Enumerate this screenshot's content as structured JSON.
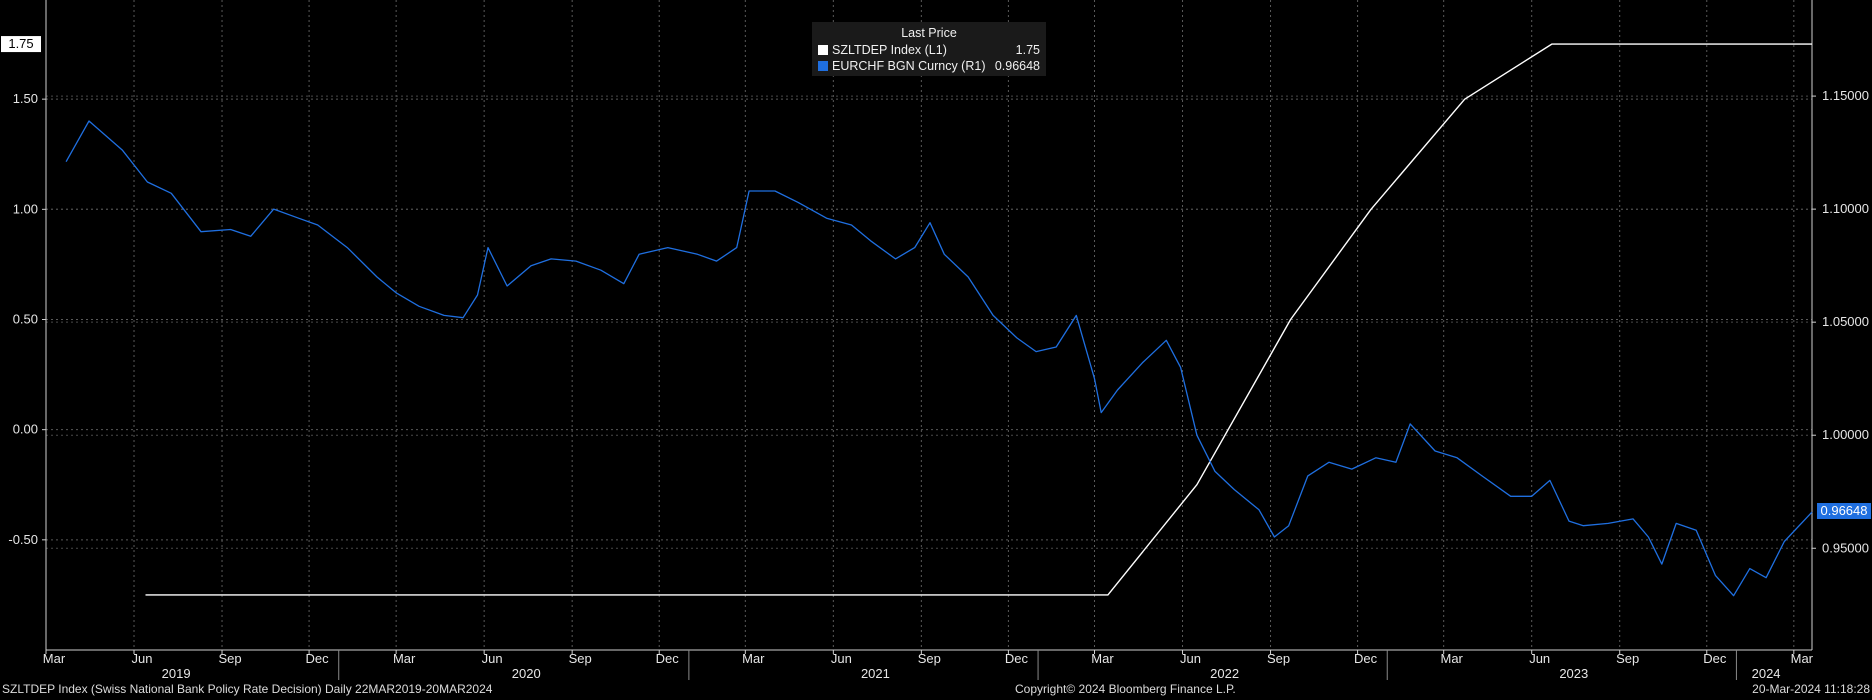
{
  "chart_data": {
    "type": "line",
    "title": "",
    "legend": {
      "title": "Last Price",
      "placement": "top-center",
      "entries": [
        {
          "label": "SZLTDEP Index  (L1)",
          "value": "1.75",
          "color": "#ffffff"
        },
        {
          "label": "EURCHF BGN Curncy  (R1)",
          "value": "0.96648",
          "color": "#1f6fe0"
        }
      ]
    },
    "left_axis": {
      "ticks": [
        "1.50",
        "1.00",
        "0.50",
        "0.00",
        "-0.50"
      ],
      "tick_values": [
        1.5,
        1.0,
        0.5,
        0.0,
        -0.5
      ],
      "ylim": [
        -1.0,
        1.95
      ],
      "last_value_label": "1.75"
    },
    "right_axis": {
      "ticks": [
        "1.15000",
        "1.10000",
        "1.05000",
        "1.00000",
        "0.95000"
      ],
      "tick_values": [
        1.15,
        1.1,
        1.05,
        1.0,
        0.95
      ],
      "ylim": [
        0.905,
        1.1925
      ],
      "last_value_label": "0.96648"
    },
    "x_axis": {
      "month_labels": [
        "Mar",
        "Jun",
        "Sep",
        "Dec",
        "Mar",
        "Jun",
        "Sep",
        "Dec",
        "Mar",
        "Jun",
        "Sep",
        "Dec",
        "Mar",
        "Jun",
        "Sep",
        "Dec",
        "Mar",
        "Jun",
        "Sep",
        "Dec",
        "Mar"
      ],
      "month_dates": [
        "2019-03",
        "2019-06",
        "2019-09",
        "2019-12",
        "2020-03",
        "2020-06",
        "2020-09",
        "2020-12",
        "2021-03",
        "2021-06",
        "2021-09",
        "2021-12",
        "2022-03",
        "2022-06",
        "2022-09",
        "2022-12",
        "2023-03",
        "2023-06",
        "2023-09",
        "2023-12",
        "2024-03"
      ],
      "year_labels": [
        "2019",
        "2020",
        "2021",
        "2022",
        "2023",
        "2024"
      ],
      "year_dates": [
        "2019-07-15",
        "2020-07-15",
        "2021-07-15",
        "2022-07-15",
        "2023-07-15",
        "2024-02-01"
      ],
      "range": [
        "2019-03-01",
        "2024-03-20"
      ]
    },
    "grid": true,
    "series": [
      {
        "name": "SZLTDEP Index  (L1)",
        "axis": "left",
        "color": "#ffffff",
        "step": true,
        "points": [
          [
            "2019-06-13",
            -0.75
          ],
          [
            "2022-03-15",
            -0.75
          ],
          [
            "2022-06-16",
            -0.25
          ],
          [
            "2022-09-22",
            0.5
          ],
          [
            "2022-12-15",
            1.0
          ],
          [
            "2023-03-23",
            1.5
          ],
          [
            "2023-06-22",
            1.75
          ],
          [
            "2024-03-20",
            1.75
          ]
        ]
      },
      {
        "name": "EURCHF BGN Curncy  (R1)",
        "axis": "right",
        "color": "#1f6fe0",
        "points": [
          [
            "2019-03-22",
            1.121
          ],
          [
            "2019-04-15",
            1.139
          ],
          [
            "2019-05-20",
            1.126
          ],
          [
            "2019-06-15",
            1.112
          ],
          [
            "2019-07-10",
            1.107
          ],
          [
            "2019-08-10",
            1.09
          ],
          [
            "2019-09-10",
            1.091
          ],
          [
            "2019-10-01",
            1.088
          ],
          [
            "2019-10-25",
            1.1
          ],
          [
            "2019-11-20",
            1.096
          ],
          [
            "2019-12-10",
            1.093
          ],
          [
            "2020-01-10",
            1.083
          ],
          [
            "2020-02-10",
            1.07
          ],
          [
            "2020-03-01",
            1.063
          ],
          [
            "2020-03-25",
            1.057
          ],
          [
            "2020-04-20",
            1.053
          ],
          [
            "2020-05-10",
            1.052
          ],
          [
            "2020-05-25",
            1.062
          ],
          [
            "2020-06-05",
            1.083
          ],
          [
            "2020-06-25",
            1.066
          ],
          [
            "2020-07-20",
            1.075
          ],
          [
            "2020-08-10",
            1.078
          ],
          [
            "2020-09-05",
            1.077
          ],
          [
            "2020-10-01",
            1.073
          ],
          [
            "2020-10-25",
            1.067
          ],
          [
            "2020-11-10",
            1.08
          ],
          [
            "2020-12-10",
            1.083
          ],
          [
            "2021-01-10",
            1.08
          ],
          [
            "2021-01-30",
            1.077
          ],
          [
            "2021-02-20",
            1.083
          ],
          [
            "2021-03-05",
            1.108
          ],
          [
            "2021-04-01",
            1.108
          ],
          [
            "2021-04-25",
            1.103
          ],
          [
            "2021-05-25",
            1.096
          ],
          [
            "2021-06-20",
            1.093
          ],
          [
            "2021-07-10",
            1.086
          ],
          [
            "2021-08-05",
            1.078
          ],
          [
            "2021-08-25",
            1.083
          ],
          [
            "2021-09-10",
            1.094
          ],
          [
            "2021-09-25",
            1.08
          ],
          [
            "2021-10-20",
            1.07
          ],
          [
            "2021-11-15",
            1.053
          ],
          [
            "2021-12-10",
            1.043
          ],
          [
            "2021-12-30",
            1.037
          ],
          [
            "2022-01-20",
            1.039
          ],
          [
            "2022-02-10",
            1.053
          ],
          [
            "2022-03-01",
            1.025
          ],
          [
            "2022-03-08",
            1.01
          ],
          [
            "2022-03-25",
            1.02
          ],
          [
            "2022-04-20",
            1.032
          ],
          [
            "2022-05-15",
            1.042
          ],
          [
            "2022-05-30",
            1.03
          ],
          [
            "2022-06-16",
            1.0
          ],
          [
            "2022-07-05",
            0.984
          ],
          [
            "2022-07-25",
            0.976
          ],
          [
            "2022-08-20",
            0.967
          ],
          [
            "2022-09-05",
            0.955
          ],
          [
            "2022-09-20",
            0.96
          ],
          [
            "2022-10-10",
            0.982
          ],
          [
            "2022-11-01",
            0.988
          ],
          [
            "2022-11-25",
            0.985
          ],
          [
            "2022-12-20",
            0.99
          ],
          [
            "2023-01-10",
            0.988
          ],
          [
            "2023-01-25",
            1.005
          ],
          [
            "2023-02-20",
            0.993
          ],
          [
            "2023-03-15",
            0.99
          ],
          [
            "2023-04-10",
            0.982
          ],
          [
            "2023-05-10",
            0.973
          ],
          [
            "2023-06-01",
            0.973
          ],
          [
            "2023-06-20",
            0.98
          ],
          [
            "2023-07-10",
            0.962
          ],
          [
            "2023-07-25",
            0.96
          ],
          [
            "2023-08-20",
            0.961
          ],
          [
            "2023-09-15",
            0.963
          ],
          [
            "2023-10-01",
            0.955
          ],
          [
            "2023-10-15",
            0.943
          ],
          [
            "2023-10-30",
            0.961
          ],
          [
            "2023-11-20",
            0.958
          ],
          [
            "2023-12-10",
            0.938
          ],
          [
            "2023-12-29",
            0.929
          ],
          [
            "2024-01-15",
            0.941
          ],
          [
            "2024-02-01",
            0.937
          ],
          [
            "2024-02-20",
            0.953
          ],
          [
            "2024-03-20",
            0.966
          ]
        ]
      }
    ]
  },
  "footer": {
    "left": "SZLTDEP Index (Swiss National Bank Policy Rate Decision)  Daily 22MAR2019-20MAR2024",
    "center": "Copyright© 2024 Bloomberg Finance L.P.",
    "right": "20-Mar-2024 11:18:28"
  }
}
